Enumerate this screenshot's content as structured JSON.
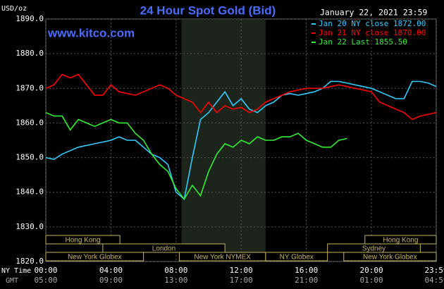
{
  "chart_data": {
    "type": "line",
    "title": "24 Hour Spot Gold (Bid)",
    "date": "January 22, 2021 23:59",
    "watermark": "www.kitco.com",
    "y_unit": "USD/oz",
    "x_label_top": "NY Time",
    "x_label_bottom": "GMT",
    "x": [
      0,
      0.5,
      1,
      1.5,
      2,
      2.5,
      3,
      3.5,
      4,
      4.5,
      5,
      5.5,
      6,
      6.5,
      7,
      7.5,
      8,
      8.5,
      9,
      9.5,
      10,
      10.5,
      11,
      11.5,
      12,
      12.5,
      13,
      13.5,
      14,
      14.5,
      15,
      15.5,
      16,
      16.5,
      17,
      17.5,
      18,
      18.5,
      19,
      19.5,
      20,
      20.5,
      21,
      21.5,
      22,
      22.5,
      23,
      23.5,
      23.98
    ],
    "series": [
      {
        "name": "Jan 20 NY close 1872.00",
        "color": "#33ccff",
        "values": [
          1850,
          1849.5,
          1851,
          1852,
          1853,
          1853.5,
          1854,
          1854.5,
          1855,
          1856,
          1855,
          1855,
          1853,
          1851,
          1850,
          1848,
          1840,
          1838,
          1850,
          1861,
          1863,
          1866,
          1869,
          1865,
          1867,
          1864,
          1863,
          1865,
          1866,
          1868,
          1868.5,
          1868,
          1868.5,
          1869,
          1870,
          1872,
          1872,
          1871.5,
          1871,
          1870.5,
          1870,
          1869,
          1868,
          1867,
          1867,
          1872,
          1872,
          1871.5,
          1870.5
        ]
      },
      {
        "name": "Jan 21 NY close 1870.00",
        "color": "#ff0000",
        "values": [
          1870,
          1871,
          1874,
          1873,
          1874,
          1871,
          1868,
          1868,
          1871,
          1869,
          1868.5,
          1868,
          1869,
          1870,
          1871,
          1870,
          1868,
          1867,
          1866,
          1863,
          1866,
          1863,
          1865,
          1864,
          1864.5,
          1863,
          1864,
          1866,
          1867,
          1868,
          1869,
          1869.5,
          1870,
          1870,
          1870,
          1870.5,
          1871,
          1870.5,
          1870,
          1869.5,
          1869,
          1866,
          1865,
          1864,
          1863,
          1861,
          1862,
          1862.5,
          1863
        ]
      },
      {
        "name": "Jan 22 Last 1855.50",
        "color": "#33ee33",
        "values": [
          1863,
          1862,
          1862,
          1858,
          1861,
          1860,
          1859,
          1860,
          1861,
          1860,
          1860,
          1857,
          1855,
          1851,
          1848,
          1846,
          1841,
          1838,
          1842,
          1839,
          1846,
          1851,
          1854,
          1853,
          1855,
          1854,
          1856,
          1855,
          1855,
          1856,
          1856,
          1857,
          1855,
          1854,
          1853,
          1853,
          1855,
          1855.5,
          null,
          null,
          null,
          null,
          null,
          null,
          null,
          null,
          null,
          null,
          null
        ]
      }
    ],
    "xlim": [
      0,
      23.98
    ],
    "ylim": [
      1820,
      1890
    ],
    "xticks": [
      {
        "value": 0,
        "label": "00:00"
      },
      {
        "value": 4,
        "label": "04:00"
      },
      {
        "value": 8,
        "label": "08:00"
      },
      {
        "value": 12,
        "label": "12:00"
      },
      {
        "value": 16,
        "label": "16:00"
      },
      {
        "value": 20,
        "label": "20:00"
      },
      {
        "value": 23.98,
        "label": "23:59"
      }
    ],
    "gmt_labels": [
      "05:00",
      "09:00",
      "13:00",
      "17:00",
      "21:00",
      "01:00",
      "04:59"
    ],
    "yticks": [
      {
        "value": 1820,
        "label": "1820.0"
      },
      {
        "value": 1830,
        "label": "1830.0"
      },
      {
        "value": 1840,
        "label": "1840.0"
      },
      {
        "value": 1850,
        "label": "1850.0"
      },
      {
        "value": 1860,
        "label": "1860.0"
      },
      {
        "value": 1870,
        "label": "1870.0"
      },
      {
        "value": 1880,
        "label": "1880.0"
      },
      {
        "value": 1890,
        "label": "1890.0"
      }
    ],
    "highlight": [
      8.33,
      13.5
    ],
    "grid": true,
    "sessions": [
      [
        {
          "label": "Hong Kong",
          "start": 0,
          "end": 4.55
        },
        {
          "label": "Hong Kong",
          "start": 19.6,
          "end": 23.98
        }
      ],
      [
        {
          "label": "London",
          "start": 3.5,
          "end": 11
        },
        {
          "label": "Sydney",
          "start": 17.3,
          "end": 23
        }
      ],
      [
        {
          "label": "New York Globex",
          "start": 0,
          "end": 6
        },
        {
          "label": "New York NYMEX",
          "start": 8.2,
          "end": 13.5
        },
        {
          "label": "NY Globex",
          "start": 13.5,
          "end": 17.3
        },
        {
          "label": "New York Globex",
          "start": 18.3,
          "end": 23.98
        }
      ]
    ]
  }
}
